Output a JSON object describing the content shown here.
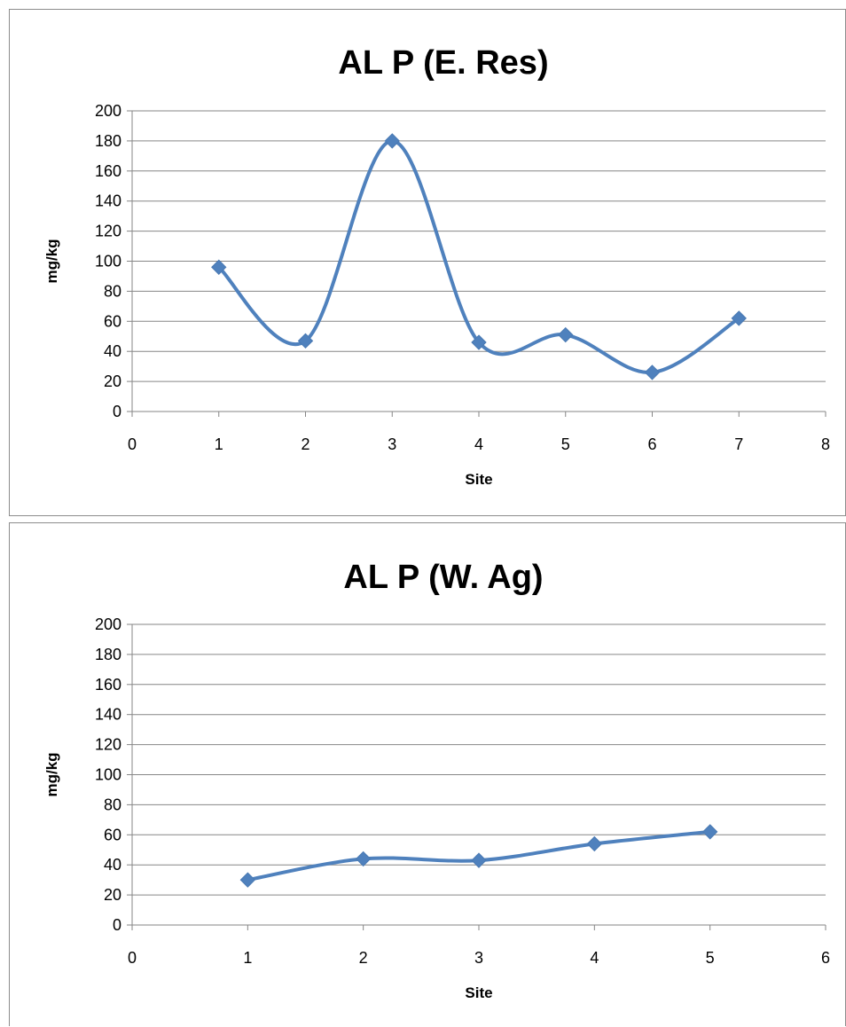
{
  "chart_data": [
    {
      "type": "line",
      "title": "AL P (E. Res)",
      "xlabel": "Site",
      "ylabel": "mg/kg",
      "xlim": [
        0,
        8
      ],
      "ylim": [
        0,
        200
      ],
      "xticks": [
        0,
        1,
        2,
        3,
        4,
        5,
        6,
        7,
        8
      ],
      "yticks": [
        0,
        20,
        40,
        60,
        80,
        100,
        120,
        140,
        160,
        180,
        200
      ],
      "grid": true,
      "smooth": true,
      "marker": "diamond",
      "color": "#4f81bd",
      "series": [
        {
          "x": [
            1,
            2,
            3,
            4,
            5,
            6,
            7
          ],
          "y": [
            96,
            47,
            180,
            46,
            51,
            26,
            62
          ]
        }
      ]
    },
    {
      "type": "line",
      "title": "AL P (W. Ag)",
      "xlabel": "Site",
      "ylabel": "mg/kg",
      "xlim": [
        0,
        6
      ],
      "ylim": [
        0,
        200
      ],
      "xticks": [
        0,
        1,
        2,
        3,
        4,
        5,
        6
      ],
      "yticks": [
        0,
        20,
        40,
        60,
        80,
        100,
        120,
        140,
        160,
        180,
        200
      ],
      "grid": true,
      "smooth": true,
      "marker": "diamond",
      "color": "#4f81bd",
      "series": [
        {
          "x": [
            1,
            2,
            3,
            4,
            5
          ],
          "y": [
            30,
            44,
            43,
            54,
            62
          ]
        }
      ]
    }
  ]
}
